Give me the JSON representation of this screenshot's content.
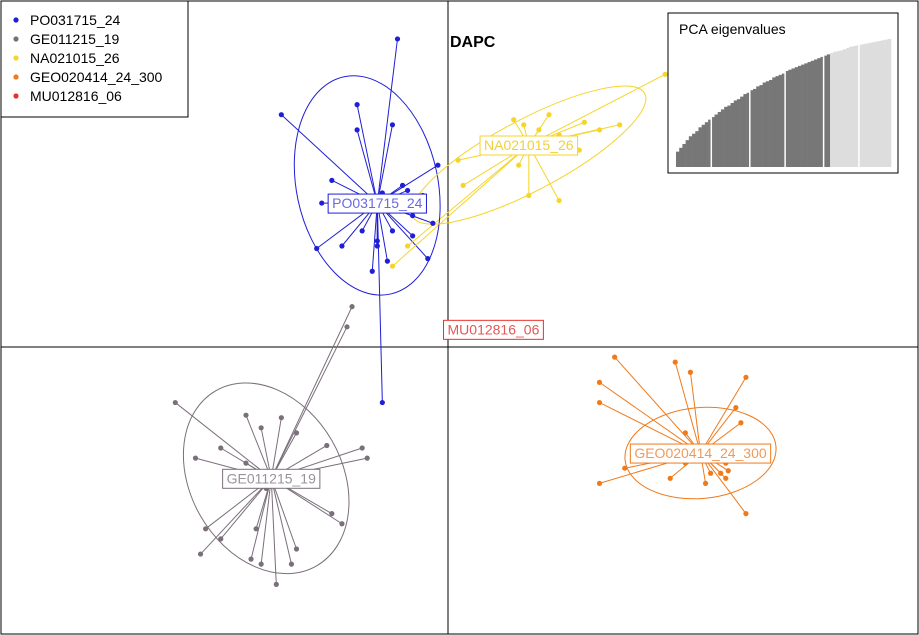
{
  "chart_data": {
    "type": "scatter",
    "title": "DAPC",
    "xlabel": "",
    "ylabel": "",
    "xlim": [
      -9,
      9
    ],
    "ylim": [
      -6,
      7
    ],
    "axes_at_origin": true,
    "grid": false,
    "legend_position": "top-left",
    "series": [
      {
        "name": "PO031715_24",
        "color": "#1f1fd6",
        "label_color": "#6a6ae0",
        "centroid": [
          -1.4,
          2.85
        ],
        "ellipse": {
          "cx": -1.6,
          "cy": 3.2,
          "rx": 1.4,
          "ry": 2.2,
          "angle": 12
        },
        "points": [
          [
            -1.0,
            6.1
          ],
          [
            -3.3,
            4.6
          ],
          [
            -1.8,
            4.8
          ],
          [
            -1.8,
            4.3
          ],
          [
            -1.1,
            4.4
          ],
          [
            -2.3,
            3.3
          ],
          [
            -2.5,
            2.85
          ],
          [
            -0.9,
            3.2
          ],
          [
            -1.3,
            3.05
          ],
          [
            -0.2,
            3.6
          ],
          [
            -0.5,
            3.0
          ],
          [
            -0.8,
            3.1
          ],
          [
            -1.1,
            2.3
          ],
          [
            -1.7,
            2.3
          ],
          [
            -0.7,
            2.2
          ],
          [
            -1.4,
            2.1
          ],
          [
            -1.5,
            1.5
          ],
          [
            -1.2,
            1.7
          ],
          [
            -0.4,
            1.75
          ],
          [
            -1.4,
            2.0
          ],
          [
            -2.1,
            2.0
          ],
          [
            -2.6,
            1.95
          ],
          [
            -1.3,
            -1.1
          ],
          [
            -0.7,
            2.6
          ],
          [
            -0.3,
            2.45
          ]
        ]
      },
      {
        "name": "GE011215_19",
        "color": "#7a6f7a",
        "label_color": "#9a929a",
        "centroid": [
          -3.5,
          -2.6
        ],
        "ellipse": {
          "cx": -3.6,
          "cy": -2.6,
          "rx": 1.5,
          "ry": 2.0,
          "angle": 30
        },
        "points": [
          [
            -1.9,
            0.8
          ],
          [
            -2.0,
            0.4
          ],
          [
            -5.4,
            -1.1
          ],
          [
            -4.0,
            -1.35
          ],
          [
            -3.7,
            -1.6
          ],
          [
            -3.3,
            -1.4
          ],
          [
            -3.0,
            -1.7
          ],
          [
            -2.4,
            -1.95
          ],
          [
            -1.7,
            -2.0
          ],
          [
            -1.6,
            -2.2
          ],
          [
            -4.5,
            -2.0
          ],
          [
            -4.0,
            -2.3
          ],
          [
            -3.0,
            -2.5
          ],
          [
            -3.6,
            -2.8
          ],
          [
            -5.0,
            -2.2
          ],
          [
            -2.3,
            -3.3
          ],
          [
            -2.1,
            -3.5
          ],
          [
            -4.5,
            -3.8
          ],
          [
            -3.8,
            -3.6
          ],
          [
            -4.8,
            -3.6
          ],
          [
            -3.0,
            -4.0
          ],
          [
            -3.1,
            -4.3
          ],
          [
            -3.7,
            -4.3
          ],
          [
            -4.9,
            -4.1
          ],
          [
            -3.4,
            -4.7
          ],
          [
            -3.9,
            -4.2
          ]
        ]
      },
      {
        "name": "NA021015_26",
        "color": "#f5d52a",
        "label_color": "#f0d040",
        "centroid": [
          1.6,
          4.0
        ],
        "ellipse": {
          "cx": 1.6,
          "cy": 3.8,
          "rx": 2.6,
          "ry": 0.7,
          "angle": 28
        },
        "points": [
          [
            4.3,
            5.4
          ],
          [
            1.3,
            4.5
          ],
          [
            1.8,
            4.3
          ],
          [
            2.0,
            4.6
          ],
          [
            2.7,
            4.45
          ],
          [
            3.4,
            4.4
          ],
          [
            0.2,
            3.7
          ],
          [
            0.9,
            3.9
          ],
          [
            1.4,
            3.6
          ],
          [
            1.6,
            3.0
          ],
          [
            2.2,
            2.9
          ],
          [
            0.3,
            3.2
          ],
          [
            -1.1,
            1.6
          ],
          [
            -0.8,
            2.0
          ],
          [
            1.5,
            4.4
          ],
          [
            2.2,
            4.2
          ],
          [
            3.0,
            4.3
          ],
          [
            2.6,
            3.9
          ]
        ]
      },
      {
        "name": "GEO020414_24_300",
        "color": "#f07a1a",
        "label_color": "#f09a5a",
        "centroid": [
          5.0,
          -2.1
        ],
        "ellipse": {
          "cx": 5.0,
          "cy": -2.1,
          "rx": 1.5,
          "ry": 0.9,
          "angle": 5
        },
        "points": [
          [
            3.3,
            -0.2
          ],
          [
            3.0,
            -0.7
          ],
          [
            4.5,
            -0.3
          ],
          [
            4.8,
            -0.5
          ],
          [
            5.9,
            -0.6
          ],
          [
            5.7,
            -1.2
          ],
          [
            3.0,
            -1.1
          ],
          [
            4.7,
            -1.7
          ],
          [
            5.8,
            -1.5
          ],
          [
            4.4,
            -2.0
          ],
          [
            5.3,
            -2.2
          ],
          [
            5.5,
            -2.3
          ],
          [
            5.6,
            -2.2
          ],
          [
            5.55,
            -2.45
          ],
          [
            4.4,
            -2.6
          ],
          [
            3.0,
            -2.7
          ],
          [
            3.5,
            -2.4
          ],
          [
            4.7,
            -2.3
          ],
          [
            5.2,
            -2.5
          ],
          [
            5.5,
            -2.6
          ],
          [
            5.1,
            -2.7
          ],
          [
            5.9,
            -3.3
          ],
          [
            5.4,
            -2.5
          ],
          [
            5.3,
            -2.0
          ]
        ]
      },
      {
        "name": "MU012816_06",
        "color": "#e8302a",
        "label_color": "#e05858",
        "centroid": [
          0.9,
          0.35
        ],
        "ellipse": null,
        "points": []
      }
    ],
    "inset": {
      "title": "PCA eigenvalues",
      "bars": [
        0.12,
        0.15,
        0.18,
        0.21,
        0.24,
        0.26,
        0.28,
        0.31,
        0.33,
        0.35,
        0.37,
        0.39,
        0.41,
        0.43,
        0.45,
        0.47,
        0.48,
        0.5,
        0.52,
        0.53,
        0.55,
        0.57,
        0.58,
        0.6,
        0.61,
        0.63,
        0.64,
        0.66,
        0.67,
        0.68,
        0.7,
        0.71,
        0.72,
        0.73,
        0.75,
        0.76,
        0.77,
        0.78,
        0.79,
        0.8,
        0.81,
        0.82,
        0.83,
        0.84,
        0.85,
        0.86,
        0.87,
        0.88,
        0.89,
        0.9,
        0.905,
        0.91,
        0.92,
        0.93,
        0.94,
        0.945,
        0.95,
        0.955,
        0.96,
        0.965,
        0.97,
        0.975,
        0.98,
        0.985,
        0.99,
        0.995,
        1.0
      ],
      "retained": 48,
      "retained_color": "#777777",
      "other_color": "#dddddd"
    }
  }
}
